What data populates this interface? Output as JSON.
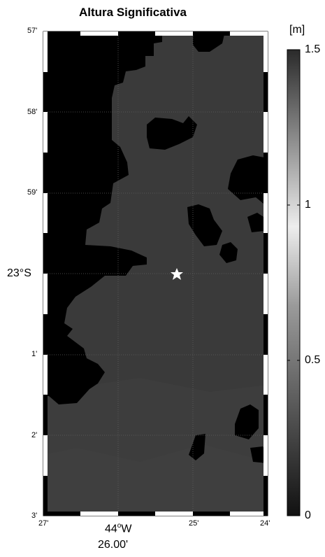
{
  "title": "Altura Significativa",
  "unit": "[m]",
  "lat_ticks": [
    "57'",
    "58'",
    "59'",
    "23°S",
    "1'",
    "2'",
    "3'"
  ],
  "lon_ticks": [
    "27'",
    "25'",
    "24'"
  ],
  "lon_main_deg": "44",
  "lon_main_suffix": "W",
  "lon_sub": "26.00'",
  "colorbar_ticks": [
    "1.5",
    "1",
    "0.5",
    "0"
  ],
  "colorbar_range": [
    0,
    1.5
  ],
  "colors": {
    "land": "#000000",
    "sea": "#3a3a3a",
    "sea_light": "#3f3f3f",
    "station": "#ffffff"
  },
  "station_marker": "white-star"
}
